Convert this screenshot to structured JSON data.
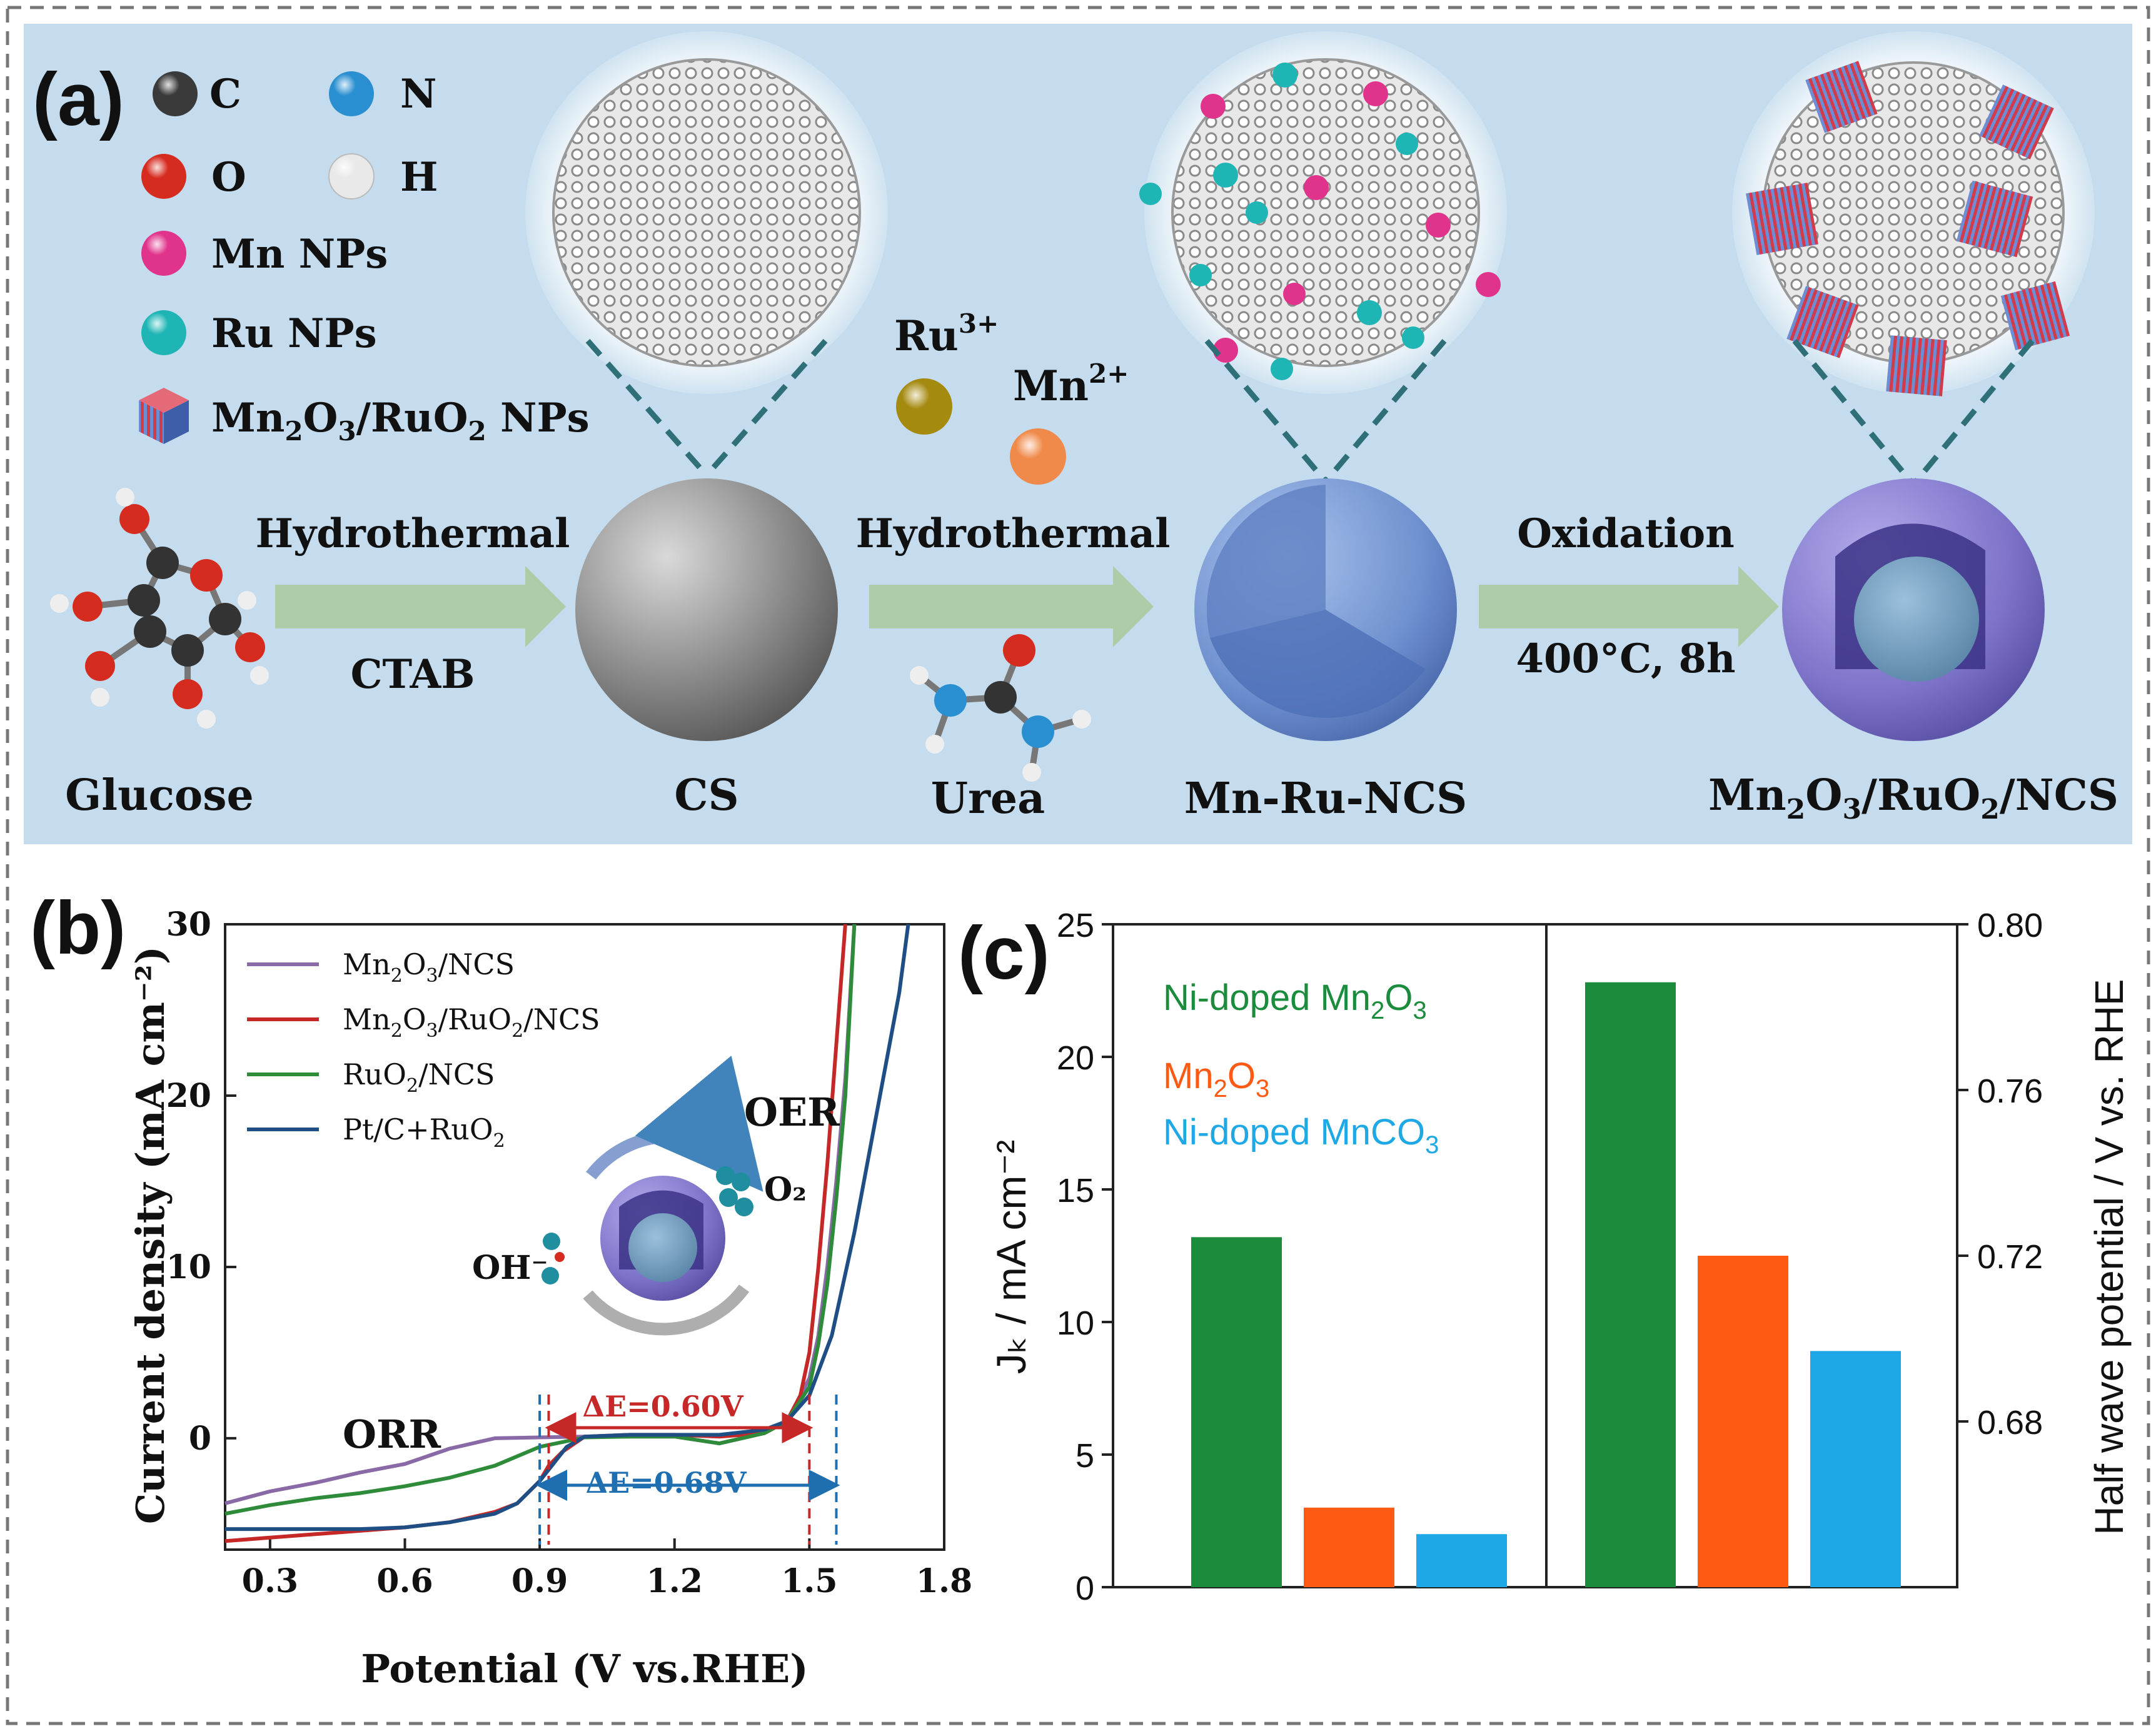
{
  "panels": {
    "a": {
      "label": "(a)",
      "legend": [
        {
          "key": "C",
          "icon": "carbon-atom-icon",
          "color": "#3a3a3a"
        },
        {
          "key": "N",
          "icon": "nitrogen-atom-icon",
          "color": "#2a8fd0"
        },
        {
          "key": "O",
          "icon": "oxygen-atom-icon",
          "color": "#d62c20"
        },
        {
          "key": "H",
          "icon": "hydrogen-atom-icon",
          "color": "#f4f4f4"
        },
        {
          "key": "Mn NPs",
          "icon": "mn-nanoparticle-icon",
          "color": "#e0338c"
        },
        {
          "key": "Ru NPs",
          "icon": "ru-nanoparticle-icon",
          "color": "#1fb5b5"
        },
        {
          "key": "Mn2O3/RuO2 NPs",
          "icon": "mn2o3-ruo2-cube-icon",
          "color": "#c0283a"
        }
      ],
      "ions": {
        "ru": "Ru3+",
        "mn": "Mn2+"
      },
      "steps": [
        {
          "top": "Hydrothermal",
          "bottom": "CTAB"
        },
        {
          "top": "Hydrothermal",
          "bottom": ""
        },
        {
          "top": "Oxidation",
          "bottom": "400°C, 8h"
        }
      ],
      "labels": {
        "glucose": "Glucose",
        "cs": "CS",
        "urea": "Urea",
        "mnru": "Mn-Ru-NCS",
        "final": "Mn2O3/RuO2/NCS"
      },
      "colors": {
        "bg": "#c4dced",
        "arrow": "#a9c99a",
        "sphere_gray": "#8d8d8d",
        "sphere_blue": "#6f90cf",
        "sphere_purple": "#7c72c8"
      }
    },
    "b": {
      "label": "(b)"
    },
    "c": {
      "label": "(c)"
    }
  },
  "chart_data": [
    {
      "id": "b",
      "type": "line",
      "xlabel": "Potential (V vs.RHE)",
      "ylabel": "Current density (mA cm⁻²)",
      "xlim": [
        0.2,
        1.8
      ],
      "ylim": [
        -6.5,
        30
      ],
      "xticks": [
        0.3,
        0.6,
        0.9,
        1.2,
        1.5,
        1.8
      ],
      "xtick_labels": [
        "0.3",
        "0.6",
        "0.9",
        "1.2",
        "1.5",
        "1.8"
      ],
      "yticks": [
        0,
        10,
        20,
        30
      ],
      "ytick_labels": [
        "0",
        "10",
        "20",
        "30"
      ],
      "series": [
        {
          "name": "Mn₂O₃/NCS",
          "color": "#8a6aa6",
          "x": [
            0.2,
            0.3,
            0.4,
            0.5,
            0.6,
            0.7,
            0.8,
            0.9,
            1.0,
            1.1,
            1.2,
            1.3,
            1.4,
            1.45,
            1.5,
            1.52,
            1.54,
            1.56,
            1.58,
            1.6
          ],
          "y": [
            -3.8,
            -3.1,
            -2.6,
            -2.0,
            -1.5,
            -0.6,
            0.0,
            0.05,
            0.1,
            0.1,
            0.1,
            -0.3,
            0.3,
            1.0,
            3.5,
            6,
            10,
            15,
            21,
            30
          ]
        },
        {
          "name": "Mn₂O₃/RuO₂/NCS",
          "color": "#c62828",
          "x": [
            0.2,
            0.3,
            0.4,
            0.5,
            0.6,
            0.7,
            0.8,
            0.85,
            0.9,
            0.92,
            0.95,
            1.0,
            1.1,
            1.2,
            1.3,
            1.4,
            1.45,
            1.48,
            1.5,
            1.52,
            1.54,
            1.56,
            1.58
          ],
          "y": [
            -6.0,
            -5.8,
            -5.6,
            -5.4,
            -5.2,
            -4.9,
            -4.3,
            -3.8,
            -2.5,
            -1.6,
            -0.8,
            0.1,
            0.2,
            0.2,
            0.1,
            0.3,
            1.0,
            2.5,
            5,
            10,
            16,
            23,
            30
          ]
        },
        {
          "name": "RuO₂/NCS",
          "color": "#2e8b3a",
          "x": [
            0.2,
            0.3,
            0.4,
            0.5,
            0.6,
            0.7,
            0.8,
            0.9,
            1.0,
            1.1,
            1.2,
            1.3,
            1.4,
            1.45,
            1.5,
            1.52,
            1.54,
            1.56,
            1.58,
            1.6
          ],
          "y": [
            -4.4,
            -3.9,
            -3.5,
            -3.2,
            -2.8,
            -2.3,
            -1.6,
            -0.5,
            0.05,
            0.1,
            0.1,
            -0.3,
            0.3,
            1.0,
            3.0,
            5.5,
            9,
            14,
            20,
            30
          ]
        },
        {
          "name": "Pt/C+RuO₂",
          "color": "#1f4e85",
          "x": [
            0.2,
            0.3,
            0.4,
            0.5,
            0.6,
            0.7,
            0.8,
            0.85,
            0.9,
            0.93,
            0.96,
            1.0,
            1.1,
            1.2,
            1.3,
            1.4,
            1.45,
            1.5,
            1.55,
            1.6,
            1.65,
            1.7,
            1.72
          ],
          "y": [
            -5.3,
            -5.3,
            -5.3,
            -5.3,
            -5.2,
            -4.9,
            -4.4,
            -3.8,
            -2.5,
            -1.5,
            -0.5,
            0.1,
            0.2,
            0.2,
            0.2,
            0.5,
            1.0,
            2.5,
            6,
            12,
            19,
            26,
            30
          ]
        }
      ],
      "annotations": {
        "orr": "ORR",
        "oer": "OER",
        "de_red": "ΔE=0.60V",
        "de_blue": "ΔE=0.68V",
        "oh": "OH⁻",
        "o2": "O₂",
        "de_red_range": [
          0.92,
          1.5
        ],
        "de_blue_range": [
          0.9,
          1.56
        ]
      }
    },
    {
      "id": "c",
      "type": "bar",
      "ylabel": "Jₖ / mA cm⁻²",
      "ylabel_right": "Half wave potential / V vs. RHE",
      "ylim": [
        0,
        25
      ],
      "ylim_right": [
        0.64,
        0.8
      ],
      "yticks": [
        0,
        5,
        10,
        15,
        20,
        25
      ],
      "ytick_labels": [
        "0",
        "5",
        "10",
        "15",
        "20",
        "25"
      ],
      "yticks_right": [
        0.68,
        0.72,
        0.76,
        0.8
      ],
      "ytick_labels_right": [
        "0.68",
        "0.72",
        "0.76",
        "0.80"
      ],
      "categories": [
        "Ni-doped Mn₂O₃",
        "Mn₂O₃",
        "Ni-doped MnCO₃"
      ],
      "colors": [
        "#1a8c3c",
        "#ff5a14",
        "#1ea8e6"
      ],
      "series": [
        {
          "name": "Jₖ",
          "axis": "left",
          "values": [
            13.2,
            3.0,
            2.0
          ]
        },
        {
          "name": "Half wave potential",
          "axis": "right",
          "values": [
            0.786,
            0.72,
            0.697
          ]
        }
      ]
    }
  ]
}
